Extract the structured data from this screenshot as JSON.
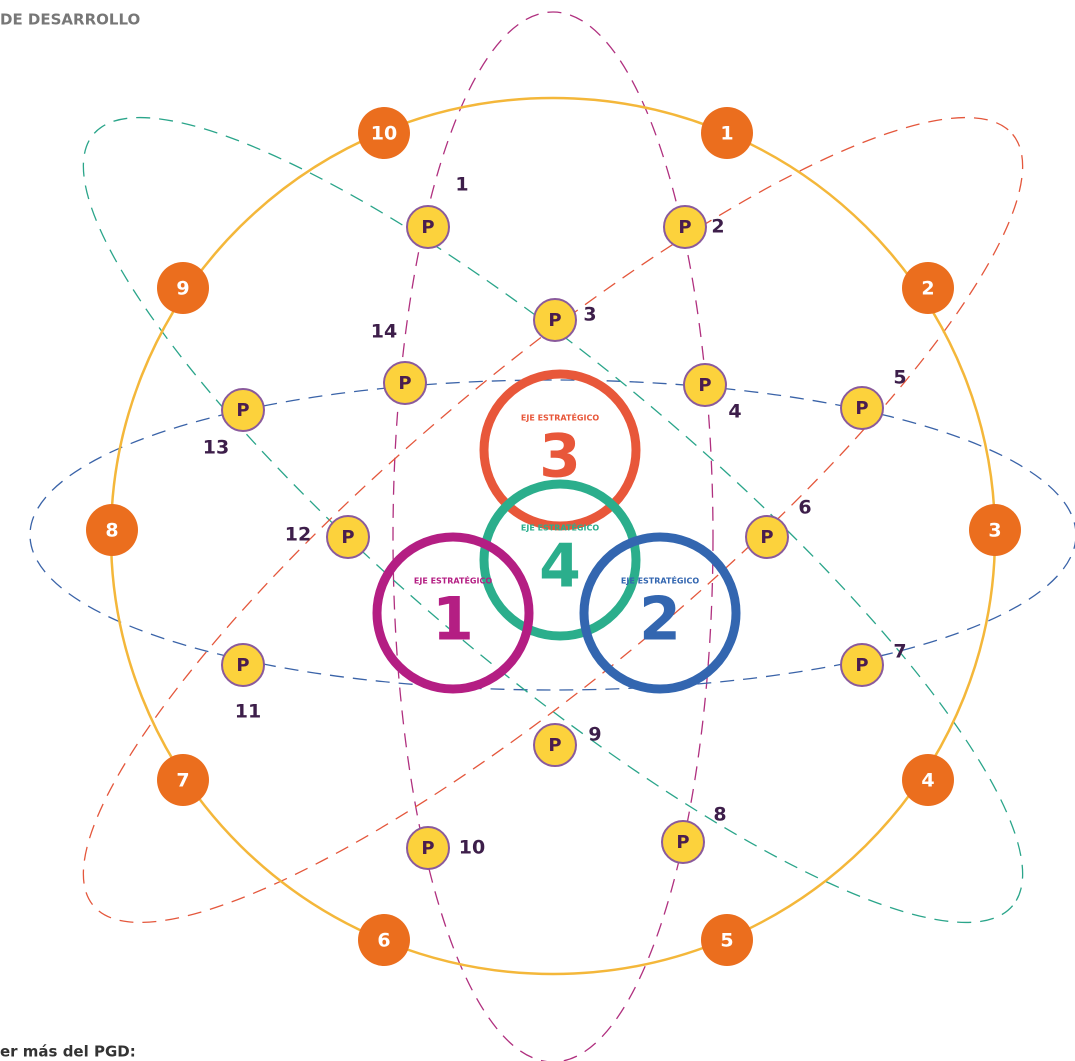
{
  "header": {
    "subtitle": "DE DESARROLLO"
  },
  "footer": {
    "text": "er más del PGD:"
  },
  "outer_nodes": [
    "1",
    "2",
    "3",
    "4",
    "5",
    "6",
    "7",
    "8",
    "9",
    "10"
  ],
  "programs": [
    {
      "label": "P",
      "number": "1"
    },
    {
      "label": "P",
      "number": "2"
    },
    {
      "label": "P",
      "number": "3"
    },
    {
      "label": "P",
      "number": "4"
    },
    {
      "label": "P",
      "number": "5"
    },
    {
      "label": "P",
      "number": "6"
    },
    {
      "label": "P",
      "number": "7"
    },
    {
      "label": "P",
      "number": "8"
    },
    {
      "label": "P",
      "number": "9"
    },
    {
      "label": "P",
      "number": "10"
    },
    {
      "label": "P",
      "number": "11"
    },
    {
      "label": "P",
      "number": "12"
    },
    {
      "label": "P",
      "number": "13"
    },
    {
      "label": "P",
      "number": "14"
    }
  ],
  "axes": [
    {
      "label": "EJE ESTRATÉGICO",
      "number": "1"
    },
    {
      "label": "EJE ESTRATÉGICO",
      "number": "2"
    },
    {
      "label": "EJE ESTRATÉGICO",
      "number": "3"
    },
    {
      "label": "EJE ESTRATÉGICO",
      "number": "4"
    }
  ]
}
